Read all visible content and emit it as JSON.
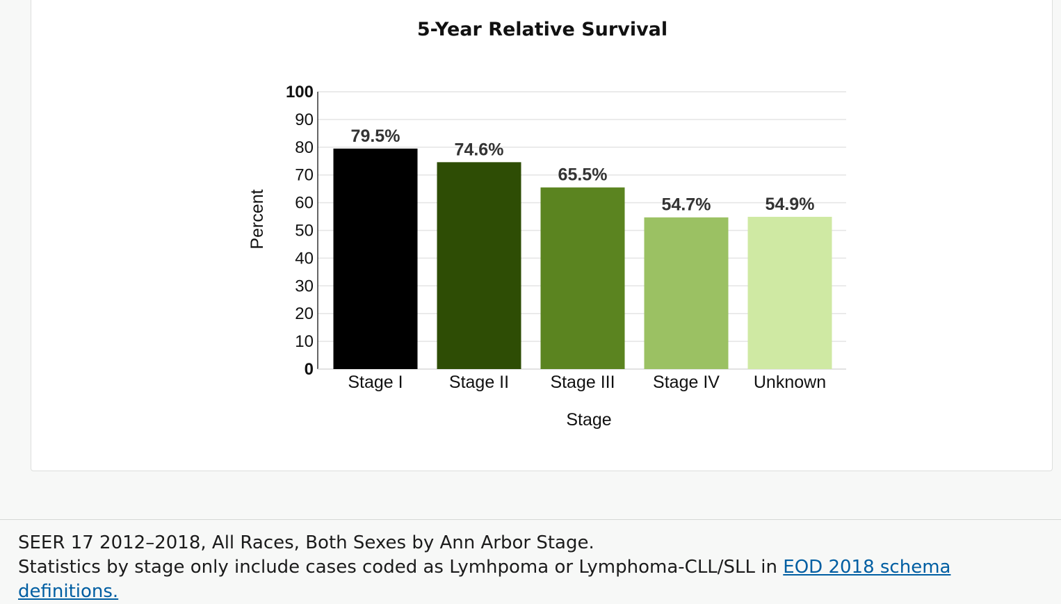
{
  "chart_data": {
    "type": "bar",
    "title": "5-Year Relative Survival",
    "xlabel": "Stage",
    "ylabel": "Percent",
    "categories": [
      "Stage I",
      "Stage II",
      "Stage III",
      "Stage IV",
      "Unknown"
    ],
    "values": [
      79.5,
      74.6,
      65.5,
      54.7,
      54.9
    ],
    "data_labels": [
      "79.5%",
      "74.6%",
      "65.5%",
      "54.7%",
      "54.9%"
    ],
    "colors": [
      "#000000",
      "#2e4d05",
      "#5b8420",
      "#9bc163",
      "#cfe9a3"
    ],
    "ylim": [
      0,
      100
    ],
    "yticks": [
      0,
      10,
      20,
      30,
      40,
      50,
      60,
      70,
      80,
      90,
      100
    ],
    "grid": true,
    "legend": "none"
  },
  "footnote": {
    "line1": "SEER 17 2012–2018, All Races, Both Sexes by Ann Arbor Stage.",
    "line2_prefix": "Statistics by stage only include cases coded as Lymhpoma or Lymphoma-CLL/SLL in ",
    "link_text": "EOD 2018 schema definitions."
  }
}
